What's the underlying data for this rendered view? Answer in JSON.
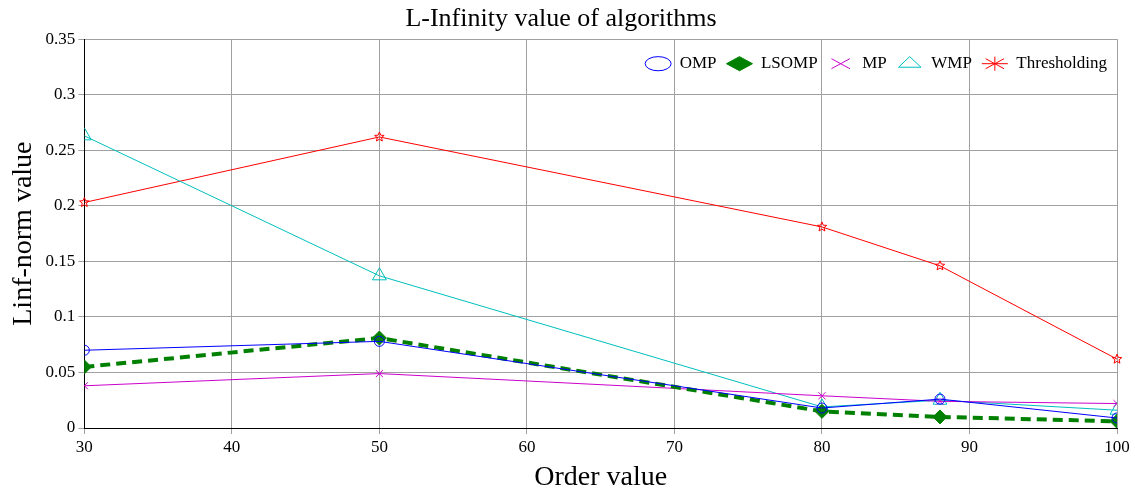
{
  "chart_data": {
    "type": "line",
    "title": "L-Infinity value of algorithms",
    "xlabel": "Order value",
    "ylabel": "Linf-norm value",
    "x": [
      30,
      50,
      80,
      88,
      100
    ],
    "series": [
      {
        "name": "OMP",
        "color": "#0000ff",
        "marker": "circle",
        "line_style": "solid",
        "values": [
          0.07,
          0.078,
          0.018,
          0.026,
          0.009
        ]
      },
      {
        "name": "LSOMP",
        "color": "#008000",
        "marker": "diamond",
        "line_style": "dashed",
        "values": [
          0.055,
          0.081,
          0.015,
          0.01,
          0.006
        ]
      },
      {
        "name": "MP",
        "color": "#cc00cc",
        "marker": "cross",
        "line_style": "solid",
        "values": [
          0.038,
          0.049,
          0.029,
          0.024,
          0.022
        ]
      },
      {
        "name": "WMP",
        "color": "#00bfbf",
        "marker": "triangle",
        "line_style": "solid",
        "values": [
          0.263,
          0.137,
          0.019,
          0.025,
          0.016
        ]
      },
      {
        "name": "Thresholding",
        "color": "#ff0000",
        "marker": "star",
        "line_style": "solid",
        "values": [
          0.203,
          0.262,
          0.181,
          0.146,
          0.062
        ]
      }
    ],
    "xlim": [
      30,
      100
    ],
    "xticks": [
      30,
      40,
      50,
      60,
      70,
      80,
      90,
      100
    ],
    "ylim": [
      0,
      0.35
    ],
    "yticks": [
      0,
      0.05,
      0.1,
      0.15,
      0.2,
      0.25,
      0.3,
      0.35
    ],
    "grid": true,
    "legend": "top right"
  }
}
